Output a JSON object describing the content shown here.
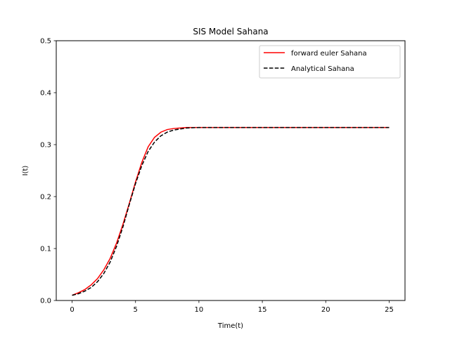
{
  "chart_data": {
    "type": "line",
    "title": "SIS Model Sahana",
    "xlabel": "Time(t)",
    "ylabel": "I(t)",
    "xlim": [
      -1.25,
      26.25
    ],
    "ylim": [
      0,
      0.5
    ],
    "xticks": [
      0,
      5,
      10,
      15,
      20,
      25
    ],
    "yticks": [
      0.0,
      0.1,
      0.2,
      0.3,
      0.4,
      0.5
    ],
    "xtick_labels": [
      "0",
      "5",
      "10",
      "15",
      "20",
      "25"
    ],
    "ytick_labels": [
      "0.0",
      "0.1",
      "0.2",
      "0.3",
      "0.4",
      "0.5"
    ],
    "grid": false,
    "legend_position": "top-right",
    "series": [
      {
        "name": "forward euler Sahana",
        "color": "#ff0000",
        "style": "solid",
        "x": [
          0,
          0.5,
          1,
          1.5,
          2,
          2.5,
          3,
          3.5,
          4,
          4.5,
          5,
          5.5,
          6,
          6.5,
          7,
          7.5,
          8,
          8.5,
          9,
          10,
          11,
          12,
          14,
          16,
          18,
          20,
          22,
          25
        ],
        "y": [
          0.01,
          0.015,
          0.021,
          0.03,
          0.042,
          0.059,
          0.081,
          0.11,
          0.146,
          0.186,
          0.228,
          0.266,
          0.296,
          0.314,
          0.324,
          0.329,
          0.331,
          0.332,
          0.333,
          0.333,
          0.333,
          0.333,
          0.333,
          0.333,
          0.333,
          0.333,
          0.333,
          0.333
        ]
      },
      {
        "name": "Analytical Sahana",
        "color": "#000000",
        "style": "dashed",
        "x": [
          0,
          0.5,
          1,
          1.5,
          2,
          2.5,
          3,
          3.5,
          4,
          4.5,
          5,
          5.5,
          6,
          6.5,
          7,
          7.5,
          8,
          8.5,
          9,
          10,
          11,
          12,
          14,
          16,
          18,
          20,
          22,
          25
        ],
        "y": [
          0.01,
          0.013,
          0.018,
          0.025,
          0.036,
          0.052,
          0.074,
          0.104,
          0.141,
          0.184,
          0.225,
          0.26,
          0.287,
          0.305,
          0.317,
          0.324,
          0.328,
          0.33,
          0.332,
          0.333,
          0.333,
          0.333,
          0.333,
          0.333,
          0.333,
          0.333,
          0.333,
          0.333
        ]
      }
    ]
  }
}
